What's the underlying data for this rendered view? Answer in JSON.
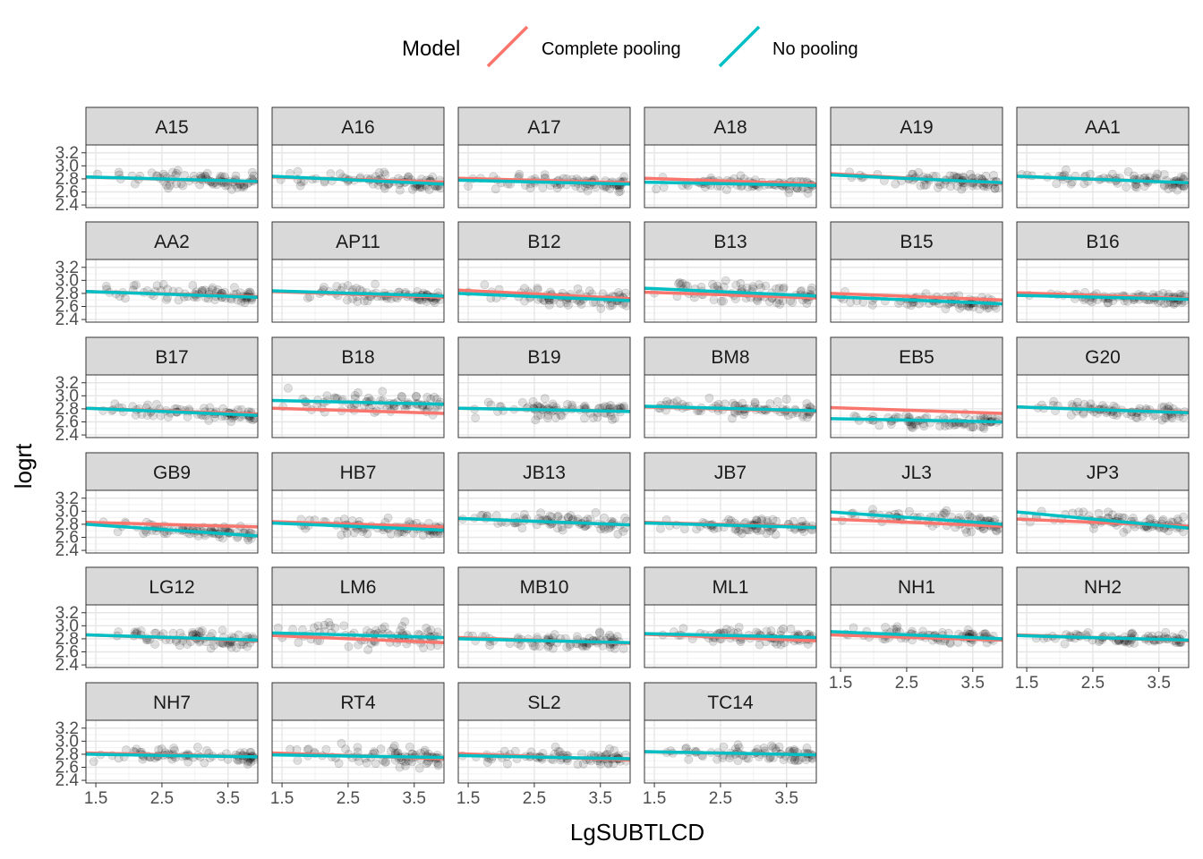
{
  "chart_data": {
    "type": "scatter",
    "title": "",
    "xlabel": "LgSUBTLCD",
    "ylabel": "logrt",
    "xlim": [
      1.35,
      3.95
    ],
    "ylim": [
      2.36,
      3.32
    ],
    "x_ticks": [
      1.5,
      2.5,
      3.5
    ],
    "x_tick_labels": [
      "1.5",
      "2.5",
      "3.5"
    ],
    "y_ticks": [
      2.4,
      2.6,
      2.8,
      3.0,
      3.2
    ],
    "y_tick_labels": [
      "2.4",
      "2.6",
      "2.8",
      "3.0",
      "3.2"
    ],
    "grid": true,
    "facet_layout": "6 columns, 6 rows, free-standing panels with strip labels on top",
    "legend": {
      "title": "Model",
      "position": "top",
      "entries": [
        {
          "label": "Complete pooling",
          "color": "#F8766D"
        },
        {
          "label": "No pooling",
          "color": "#00BFC4"
        }
      ]
    },
    "series": [
      {
        "name": "Complete pooling",
        "color": "#F8766D",
        "kind": "regression line"
      },
      {
        "name": "No pooling",
        "color": "#00BFC4",
        "kind": "regression line"
      }
    ],
    "points_style": {
      "color": "#000000",
      "opacity": 0.12
    },
    "panels": [
      {
        "label": "A15",
        "cp": [
          2.83,
          2.75
        ],
        "np": [
          2.83,
          2.76
        ],
        "center": 2.78,
        "spread": 0.1
      },
      {
        "label": "A16",
        "cp": [
          2.83,
          2.75
        ],
        "np": [
          2.84,
          2.72
        ],
        "center": 2.78,
        "spread": 0.1
      },
      {
        "label": "A17",
        "cp": [
          2.81,
          2.74
        ],
        "np": [
          2.78,
          2.72
        ],
        "center": 2.74,
        "spread": 0.09
      },
      {
        "label": "A18",
        "cp": [
          2.81,
          2.72
        ],
        "np": [
          2.75,
          2.7
        ],
        "center": 2.72,
        "spread": 0.08
      },
      {
        "label": "A19",
        "cp": [
          2.88,
          2.73
        ],
        "np": [
          2.86,
          2.74
        ],
        "center": 2.79,
        "spread": 0.1
      },
      {
        "label": "AA1",
        "cp": [
          2.84,
          2.74
        ],
        "np": [
          2.84,
          2.74
        ],
        "center": 2.78,
        "spread": 0.1
      },
      {
        "label": "AA2",
        "cp": [
          2.83,
          2.75
        ],
        "np": [
          2.83,
          2.74
        ],
        "center": 2.77,
        "spread": 0.1
      },
      {
        "label": "AP11",
        "cp": [
          2.83,
          2.74
        ],
        "np": [
          2.84,
          2.76
        ],
        "center": 2.77,
        "spread": 0.1
      },
      {
        "label": "B12",
        "cp": [
          2.85,
          2.72
        ],
        "np": [
          2.8,
          2.69
        ],
        "center": 2.74,
        "spread": 0.1
      },
      {
        "label": "B13",
        "cp": [
          2.82,
          2.73
        ],
        "np": [
          2.88,
          2.76
        ],
        "center": 2.8,
        "spread": 0.13
      },
      {
        "label": "B15",
        "cp": [
          2.8,
          2.7
        ],
        "np": [
          2.75,
          2.64
        ],
        "center": 2.68,
        "spread": 0.08
      },
      {
        "label": "B16",
        "cp": [
          2.81,
          2.72
        ],
        "np": [
          2.77,
          2.71
        ],
        "center": 2.74,
        "spread": 0.08
      },
      {
        "label": "B17",
        "cp": [
          2.81,
          2.72
        ],
        "np": [
          2.81,
          2.7
        ],
        "center": 2.75,
        "spread": 0.09
      },
      {
        "label": "B18",
        "cp": [
          2.81,
          2.73
        ],
        "np": [
          2.93,
          2.87
        ],
        "center": 2.9,
        "spread": 0.14
      },
      {
        "label": "B19",
        "cp": [
          2.81,
          2.76
        ],
        "np": [
          2.81,
          2.76
        ],
        "center": 2.78,
        "spread": 0.1
      },
      {
        "label": "BM8",
        "cp": [
          2.83,
          2.76
        ],
        "np": [
          2.84,
          2.77
        ],
        "center": 2.79,
        "spread": 0.1
      },
      {
        "label": "EB5",
        "cp": [
          2.82,
          2.73
        ],
        "np": [
          2.65,
          2.6
        ],
        "center": 2.62,
        "spread": 0.08
      },
      {
        "label": "G20",
        "cp": [
          2.83,
          2.75
        ],
        "np": [
          2.83,
          2.74
        ],
        "center": 2.78,
        "spread": 0.09
      },
      {
        "label": "GB9",
        "cp": [
          2.83,
          2.76
        ],
        "np": [
          2.8,
          2.62
        ],
        "center": 2.7,
        "spread": 0.09
      },
      {
        "label": "HB7",
        "cp": [
          2.84,
          2.76
        ],
        "np": [
          2.82,
          2.71
        ],
        "center": 2.75,
        "spread": 0.09
      },
      {
        "label": "JB13",
        "cp": [
          2.89,
          2.79
        ],
        "np": [
          2.89,
          2.79
        ],
        "center": 2.83,
        "spread": 0.1
      },
      {
        "label": "JB7",
        "cp": [
          2.83,
          2.76
        ],
        "np": [
          2.82,
          2.75
        ],
        "center": 2.78,
        "spread": 0.09
      },
      {
        "label": "JL3",
        "cp": [
          2.88,
          2.77
        ],
        "np": [
          2.99,
          2.8
        ],
        "center": 2.87,
        "spread": 0.11
      },
      {
        "label": "JP3",
        "cp": [
          2.88,
          2.77
        ],
        "np": [
          2.99,
          2.74
        ],
        "center": 2.84,
        "spread": 0.12
      },
      {
        "label": "LG12",
        "cp": [
          2.86,
          2.77
        ],
        "np": [
          2.86,
          2.78
        ],
        "center": 2.82,
        "spread": 0.11
      },
      {
        "label": "LM6",
        "cp": [
          2.85,
          2.74
        ],
        "np": [
          2.89,
          2.82
        ],
        "center": 2.86,
        "spread": 0.14
      },
      {
        "label": "MB10",
        "cp": [
          2.82,
          2.73
        ],
        "np": [
          2.8,
          2.74
        ],
        "center": 2.76,
        "spread": 0.09
      },
      {
        "label": "ML1",
        "cp": [
          2.87,
          2.77
        ],
        "np": [
          2.88,
          2.82
        ],
        "center": 2.83,
        "spread": 0.1
      },
      {
        "label": "NH1",
        "cp": [
          2.86,
          2.78
        ],
        "np": [
          2.91,
          2.8
        ],
        "center": 2.84,
        "spread": 0.09
      },
      {
        "label": "NH2",
        "cp": [
          2.86,
          2.77
        ],
        "np": [
          2.85,
          2.78
        ],
        "center": 2.81,
        "spread": 0.08
      },
      {
        "label": "NH7",
        "cp": [
          2.82,
          2.76
        ],
        "np": [
          2.8,
          2.76
        ],
        "center": 2.78,
        "spread": 0.09
      },
      {
        "label": "RT4",
        "cp": [
          2.82,
          2.73
        ],
        "np": [
          2.79,
          2.75
        ],
        "center": 2.8,
        "spread": 0.13
      },
      {
        "label": "SL2",
        "cp": [
          2.81,
          2.71
        ],
        "np": [
          2.78,
          2.73
        ],
        "center": 2.74,
        "spread": 0.09
      },
      {
        "label": "TC14",
        "cp": [
          2.84,
          2.79
        ],
        "np": [
          2.84,
          2.79
        ],
        "center": 2.81,
        "spread": 0.1
      }
    ]
  }
}
